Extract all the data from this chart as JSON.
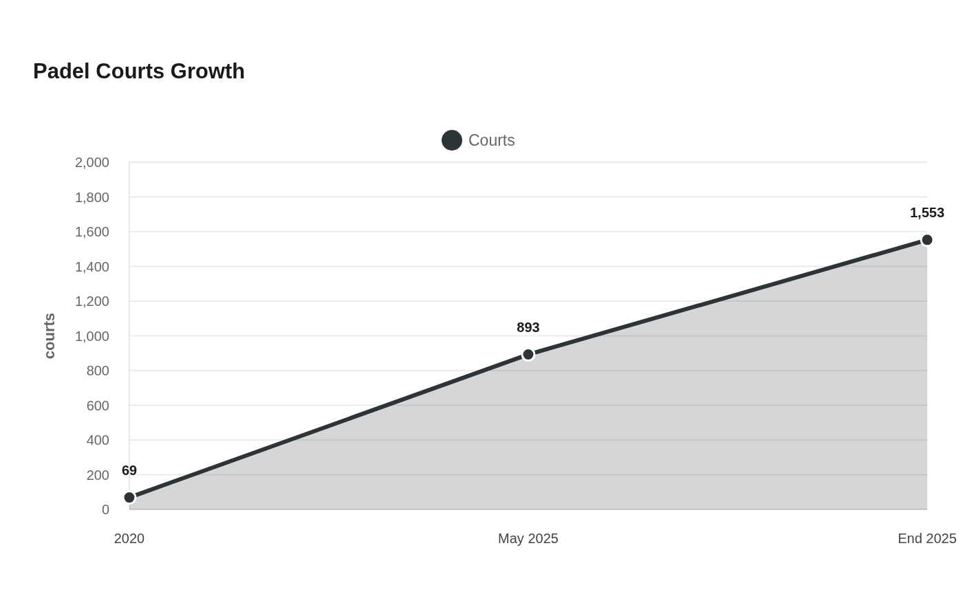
{
  "chart_data": {
    "type": "area",
    "title": "Padel Courts Growth",
    "ylabel": "courts",
    "categories": [
      "2020",
      "May 2025",
      "End 2025"
    ],
    "series": [
      {
        "name": "Courts",
        "color": "#2d3436",
        "values": [
          69,
          893,
          1553
        ],
        "value_labels": [
          "69",
          "893",
          "1,553"
        ]
      }
    ],
    "ylim": [
      0,
      2000
    ],
    "yticks": [
      {
        "value": 0,
        "label": "0"
      },
      {
        "value": 200,
        "label": "200"
      },
      {
        "value": 400,
        "label": "400"
      },
      {
        "value": 600,
        "label": "600"
      },
      {
        "value": 800,
        "label": "800"
      },
      {
        "value": 1000,
        "label": "1,000"
      },
      {
        "value": 1200,
        "label": "1,200"
      },
      {
        "value": 1400,
        "label": "1,400"
      },
      {
        "value": 1600,
        "label": "1,600"
      },
      {
        "value": 1800,
        "label": "1,800"
      },
      {
        "value": 2000,
        "label": "2,000"
      }
    ],
    "grid": "y",
    "legend": "top",
    "marker": "circle"
  }
}
